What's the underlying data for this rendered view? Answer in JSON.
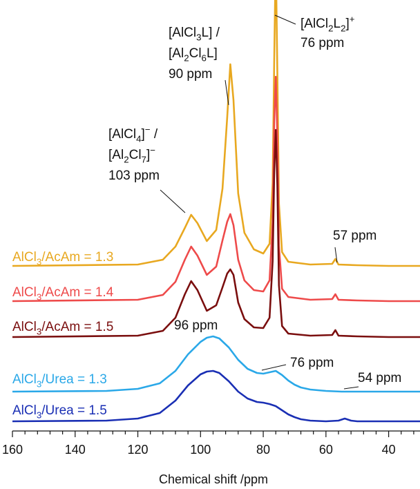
{
  "chart_data": {
    "type": "line",
    "xlabel": "Chemical shift /ppm",
    "ylabel": "",
    "xlim": [
      160,
      30
    ],
    "x_reversed": true,
    "x_ticks": [
      160,
      140,
      120,
      100,
      80,
      60,
      40
    ],
    "grid": false,
    "series": [
      {
        "name": "AlCl3/AcAm = 1.3",
        "label": {
          "prefix": "AlCl",
          "sub": "3",
          "suffix": "/AcAm = 1.3"
        },
        "color": "#e8a820",
        "x": [
          160,
          120,
          112,
          108,
          105,
          103,
          101,
          98,
          95,
          93,
          91.5,
          90.5,
          89.5,
          88,
          86,
          83,
          80,
          78,
          77,
          76.5,
          76,
          75.5,
          75,
          74,
          72,
          65,
          58,
          57,
          56,
          50,
          40,
          30
        ],
        "y": [
          0,
          2,
          9,
          28,
          55,
          74,
          62,
          36,
          52,
          112,
          215,
          292,
          240,
          105,
          48,
          24,
          18,
          32,
          120,
          300,
          450,
          280,
          90,
          20,
          6,
          2,
          3,
          10,
          2,
          1,
          0,
          0
        ]
      },
      {
        "name": "AlCl3/AcAm = 1.4",
        "label": {
          "prefix": "AlCl",
          "sub": "3",
          "suffix": "/AcAm = 1.4"
        },
        "color": "#ee4a4a",
        "x": [
          160,
          120,
          112,
          108,
          105,
          103,
          101,
          98,
          95,
          93,
          91.5,
          90.5,
          89.5,
          88,
          86,
          83,
          80,
          78,
          77,
          76.5,
          76,
          75.5,
          75,
          74,
          72,
          65,
          58,
          57,
          56,
          50,
          40,
          30
        ],
        "y": [
          0,
          2,
          9,
          28,
          60,
          79,
          66,
          38,
          50,
          88,
          115,
          126,
          110,
          60,
          30,
          16,
          14,
          30,
          115,
          260,
          325,
          240,
          80,
          18,
          6,
          2,
          3,
          10,
          2,
          1,
          0,
          0
        ]
      },
      {
        "name": "AlCl3/AcAm = 1.5",
        "label": {
          "prefix": "AlCl",
          "sub": "3",
          "suffix": "/AcAm = 1.5"
        },
        "color": "#7a0e0e",
        "x": [
          160,
          120,
          112,
          108,
          105,
          103,
          101,
          98,
          95,
          93,
          91.5,
          90.5,
          89.5,
          88,
          86,
          83,
          80,
          78,
          77,
          76.5,
          76,
          75.5,
          75,
          74,
          72,
          65,
          58,
          57,
          56,
          50,
          40,
          30
        ],
        "y": [
          0,
          2,
          9,
          28,
          62,
          81,
          68,
          38,
          46,
          72,
          92,
          98,
          90,
          50,
          26,
          14,
          13,
          28,
          110,
          240,
          300,
          220,
          75,
          16,
          5,
          2,
          3,
          10,
          2,
          1,
          0,
          0
        ]
      },
      {
        "name": "AlCl3/Urea = 1.3",
        "label": {
          "prefix": "AlCl",
          "sub": "3",
          "suffix": "/Urea = 1.3"
        },
        "color": "#2aa8e8",
        "x": [
          160,
          130,
          120,
          113,
          108,
          104,
          100,
          98,
          96,
          94,
          91,
          88,
          85,
          82,
          80,
          78,
          76,
          74,
          72,
          70,
          68,
          65,
          60,
          55,
          50,
          40,
          30
        ],
        "y": [
          0,
          1,
          4,
          12,
          30,
          54,
          72,
          78,
          80,
          77,
          64,
          46,
          33,
          27,
          26,
          28,
          30,
          24,
          16,
          10,
          6,
          3,
          1,
          0,
          0,
          0,
          0
        ]
      },
      {
        "name": "AlCl3/Urea = 1.5",
        "label": {
          "prefix": "AlCl",
          "sub": "3",
          "suffix": "/Urea = 1.5"
        },
        "color": "#1a2fb4",
        "x": [
          160,
          130,
          120,
          113,
          108,
          104,
          100,
          98,
          96,
          94,
          91,
          88,
          85,
          82,
          80,
          78,
          76,
          74,
          72,
          70,
          68,
          65,
          60,
          56,
          54,
          52,
          50,
          40,
          30
        ],
        "y": [
          0,
          1,
          4,
          12,
          30,
          52,
          68,
          72,
          73,
          70,
          58,
          43,
          33,
          28,
          27,
          25,
          22,
          16,
          10,
          6,
          3,
          1,
          0,
          1,
          4,
          1,
          0,
          0,
          0
        ]
      }
    ],
    "annotations": [
      {
        "lines": [
          [
            {
              "t": "[AlCl"
            },
            {
              "t": "4",
              "sub": true
            },
            {
              "t": "]"
            },
            {
              "t": "−",
              "sup": true
            },
            {
              "t": " /"
            }
          ],
          [
            {
              "t": "[Al"
            },
            {
              "t": "2",
              "sub": true
            },
            {
              "t": "Cl"
            },
            {
              "t": "7",
              "sub": true
            },
            {
              "t": "]"
            },
            {
              "t": "−",
              "sup": true
            }
          ],
          [
            {
              "t": "103 ppm"
            }
          ]
        ]
      },
      {
        "lines": [
          [
            {
              "t": "[AlCl"
            },
            {
              "t": "3",
              "sub": true
            },
            {
              "t": "L] /"
            }
          ],
          [
            {
              "t": "[Al"
            },
            {
              "t": "2",
              "sub": true
            },
            {
              "t": "Cl"
            },
            {
              "t": "6",
              "sub": true
            },
            {
              "t": "L]"
            }
          ],
          [
            {
              "t": "90 ppm"
            }
          ]
        ]
      },
      {
        "lines": [
          [
            {
              "t": "[AlCl"
            },
            {
              "t": "2",
              "sub": true
            },
            {
              "t": "L"
            },
            {
              "t": "2",
              "sub": true
            },
            {
              "t": "]"
            },
            {
              "t": "+",
              "sup": true
            }
          ],
          [
            {
              "t": "76 ppm"
            }
          ]
        ]
      },
      {
        "lines": [
          [
            {
              "t": "57 ppm"
            }
          ]
        ]
      },
      {
        "lines": [
          [
            {
              "t": "96 ppm"
            }
          ]
        ]
      },
      {
        "lines": [
          [
            {
              "t": "76 ppm"
            }
          ]
        ]
      },
      {
        "lines": [
          [
            {
              "t": "54 ppm"
            }
          ]
        ]
      }
    ]
  }
}
